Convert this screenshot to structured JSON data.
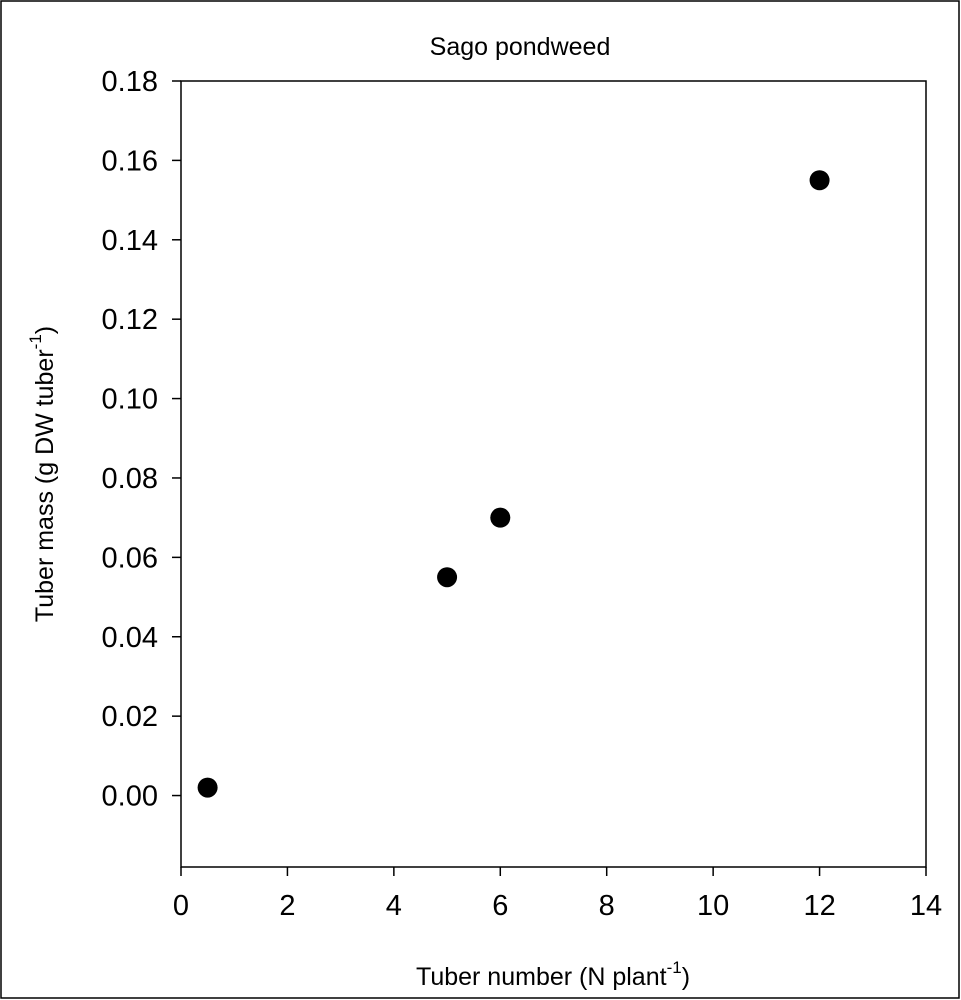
{
  "chart_data": {
    "type": "scatter",
    "title": "Sago pondweed",
    "xlabel": "Tuber number (N plant",
    "xlabel_sup": "-1",
    "xlabel_end": ")",
    "ylabel": "Tuber mass (g DW tuber",
    "ylabel_sup": "-1",
    "ylabel_end": ")",
    "xlim": [
      0,
      14
    ],
    "ylim": [
      -0.018,
      0.18
    ],
    "x_ticks": [
      0,
      2,
      4,
      6,
      8,
      10,
      12,
      14
    ],
    "x_tick_labels": [
      "0",
      "2",
      "4",
      "6",
      "8",
      "10",
      "12",
      "14"
    ],
    "y_ticks": [
      0.0,
      0.02,
      0.04,
      0.06,
      0.08,
      0.1,
      0.12,
      0.14,
      0.16,
      0.18
    ],
    "y_tick_labels": [
      "0.00",
      "0.02",
      "0.04",
      "0.06",
      "0.08",
      "0.10",
      "0.12",
      "0.14",
      "0.16",
      "0.18"
    ],
    "grid": false,
    "marker_color": "#000000",
    "points": [
      {
        "x": 0.5,
        "y": 0.002
      },
      {
        "x": 5,
        "y": 0.055
      },
      {
        "x": 6,
        "y": 0.07
      },
      {
        "x": 12,
        "y": 0.155
      }
    ]
  }
}
